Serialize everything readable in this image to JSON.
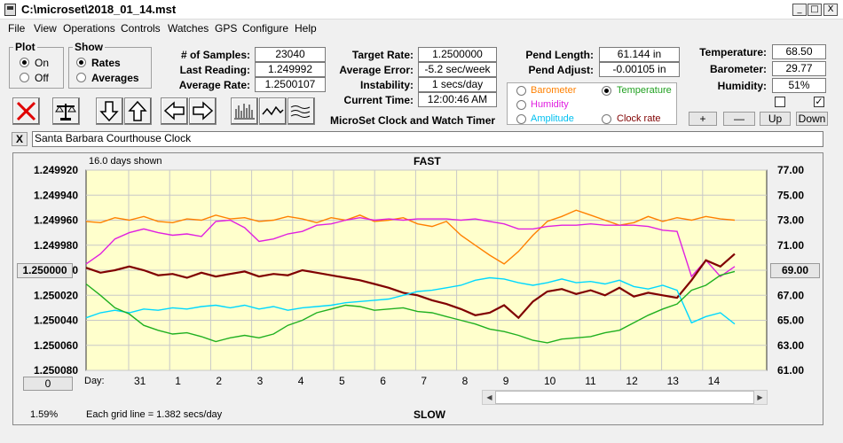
{
  "window": {
    "title": "C:\\microset\\2018_01_14.mst",
    "min": "_",
    "max": "□",
    "close": "X"
  },
  "menu": [
    "File",
    "View",
    "Operations",
    "Controls",
    "Watches",
    "GPS",
    "Configure",
    "Help"
  ],
  "plot_group": {
    "title": "Plot",
    "on": "On",
    "off": "Off"
  },
  "show_group": {
    "title": "Show",
    "rates": "Rates",
    "averages": "Averages"
  },
  "stats": {
    "samples_label": "# of Samples:",
    "samples": "23040",
    "last_reading_label": "Last Reading:",
    "last_reading": "1.249992",
    "avg_rate_label": "Average Rate:",
    "avg_rate": "1.2500107"
  },
  "rates": {
    "target_label": "Target Rate:",
    "target": "1.2500000",
    "avg_error_label": "Average Error:",
    "avg_error": "-5.2 sec/week",
    "instability_label": "Instability:",
    "instability": "1 secs/day",
    "current_time_label": "Current Time:",
    "current_time": "12:00:46 AM"
  },
  "app_name": "MicroSet Clock and Watch Timer",
  "pend": {
    "length_label": "Pend Length:",
    "length": "61.144 in",
    "adjust_label": "Pend Adjust:",
    "adjust": "-0.00105 in"
  },
  "sensors": {
    "barometer": "Barometer",
    "humidity": "Humidity",
    "amplitude": "Amplitude",
    "temperature": "Temperature",
    "clock_rate": "Clock rate"
  },
  "environment": {
    "temp_label": "Temperature:",
    "temp": "68.50",
    "baro_label": "Barometer:",
    "baro": "29.77",
    "hum_label": "Humidity:",
    "hum": "51%",
    "check_right": "✓"
  },
  "adjust_buttons": {
    "plus": "+",
    "minus": "—",
    "up": "Up",
    "down": "Down"
  },
  "clock_name": "Santa Barbara Courthouse Clock",
  "clear_label": "X",
  "chart": {
    "days_shown": "16.0 days shown",
    "fast": "FAST",
    "slow": "SLOW",
    "center_button": "1.250000",
    "right_button": "69.00",
    "zero_button": "0",
    "day_label": "Day:",
    "grid_note": "Each grid line = 1.382 secs/day",
    "percent": "1.59%"
  },
  "chart_data": {
    "type": "line",
    "bg": "#ffffcc",
    "left_axis": {
      "ticks": [
        "1.249920",
        "1.249940",
        "1.249960",
        "1.249980",
        "1.250000",
        "1.250020",
        "1.250040",
        "1.250060",
        "1.250080"
      ],
      "range": [
        1.24992,
        1.25008
      ],
      "inverted": true
    },
    "right_axis": {
      "ticks": [
        "77.00",
        "75.00",
        "73.00",
        "71.00",
        "69.00",
        "67.00",
        "65.00",
        "63.00",
        "61.00"
      ],
      "range": [
        61,
        77
      ]
    },
    "x_ticks": [
      "31",
      "1",
      "2",
      "3",
      "4",
      "5",
      "6",
      "7",
      "8",
      "9",
      "10",
      "11",
      "12",
      "13",
      "14"
    ],
    "series": [
      {
        "color": "#ff8000",
        "axis": "right",
        "values": [
          72.9,
          72.8,
          73.2,
          73.0,
          73.3,
          72.9,
          72.8,
          73.1,
          73.0,
          73.4,
          73.1,
          73.2,
          72.9,
          73.0,
          73.3,
          73.1,
          72.8,
          73.2,
          73.0,
          73.4,
          72.9,
          73.0,
          73.2,
          72.7,
          72.5,
          72.9,
          71.8,
          71.0,
          70.2,
          69.5,
          70.5,
          71.8,
          72.9,
          73.3,
          73.8,
          73.4,
          73.0,
          72.6,
          72.8,
          73.3,
          72.9,
          73.2,
          73.0,
          73.3,
          73.1,
          73.0
        ]
      },
      {
        "color": "#e020e0",
        "axis": "right",
        "values": [
          69.5,
          70.3,
          71.5,
          72.0,
          72.3,
          72.0,
          71.8,
          71.9,
          71.7,
          72.9,
          73.0,
          72.4,
          71.3,
          71.5,
          71.9,
          72.1,
          72.6,
          72.7,
          73.0,
          73.2,
          73.0,
          73.1,
          73.0,
          73.1,
          73.1,
          73.1,
          73.0,
          73.1,
          72.9,
          72.7,
          72.3,
          72.3,
          72.5,
          72.6,
          72.6,
          72.7,
          72.6,
          72.6,
          72.6,
          72.5,
          72.2,
          72.1,
          68.5,
          69.8,
          68.5,
          69.3
        ]
      },
      {
        "color": "#800000",
        "axis": "right",
        "values": [
          69.2,
          68.8,
          69.0,
          69.3,
          69.0,
          68.6,
          68.7,
          68.4,
          68.8,
          68.5,
          68.7,
          68.9,
          68.5,
          68.7,
          68.6,
          69.0,
          68.8,
          68.6,
          68.4,
          68.2,
          67.9,
          67.6,
          67.2,
          67.0,
          66.6,
          66.3,
          65.9,
          65.4,
          65.6,
          66.2,
          65.2,
          66.5,
          67.3,
          67.5,
          67.1,
          67.4,
          67.0,
          67.6,
          66.9,
          67.2,
          67.0,
          66.8,
          68.2,
          69.8,
          69.3,
          70.3
        ]
      },
      {
        "color": "#00d8ff",
        "axis": "right",
        "values": [
          65.2,
          65.6,
          65.8,
          65.6,
          65.9,
          65.8,
          66.0,
          65.9,
          66.1,
          66.2,
          66.0,
          66.2,
          65.9,
          66.1,
          65.8,
          66.0,
          66.1,
          66.2,
          66.4,
          66.5,
          66.6,
          66.7,
          67.0,
          67.3,
          67.4,
          67.6,
          67.8,
          68.2,
          68.4,
          68.3,
          68.0,
          67.8,
          68.0,
          68.3,
          68.0,
          68.1,
          67.9,
          68.2,
          67.7,
          67.5,
          67.8,
          67.4,
          64.8,
          65.3,
          65.6,
          64.7
        ]
      },
      {
        "color": "#20b020",
        "axis": "right",
        "values": [
          67.9,
          67.0,
          66.0,
          65.5,
          64.6,
          64.2,
          63.9,
          64.0,
          63.7,
          63.3,
          63.6,
          63.8,
          63.6,
          63.9,
          64.6,
          65.0,
          65.6,
          65.9,
          66.2,
          66.1,
          65.8,
          65.9,
          66.0,
          65.7,
          65.6,
          65.3,
          65.0,
          64.7,
          64.3,
          64.1,
          63.8,
          63.4,
          63.2,
          63.5,
          63.6,
          63.7,
          64.0,
          64.2,
          64.8,
          65.4,
          65.9,
          66.3,
          67.4,
          67.8,
          68.6,
          68.9
        ]
      }
    ]
  }
}
